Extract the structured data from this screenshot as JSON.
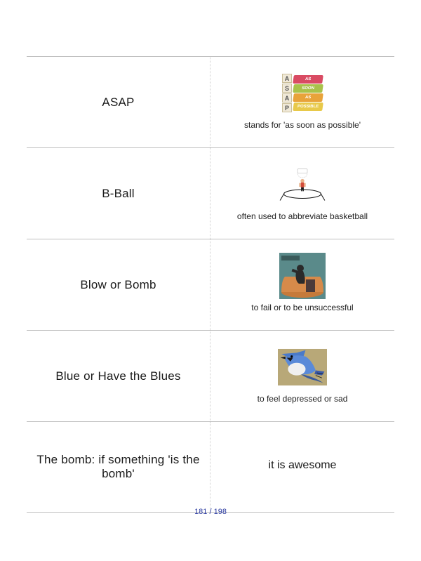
{
  "rows": [
    {
      "term": "ASAP",
      "definition": "stands for 'as soon as possible'",
      "icon": "asap",
      "def_big": false
    },
    {
      "term": "B-Ball",
      "definition": "often used to abbreviate basketball",
      "icon": "bball",
      "def_big": false
    },
    {
      "term": "Blow or Bomb",
      "definition": "to fail or to be unsuccessful",
      "icon": "bomb",
      "def_big": false
    },
    {
      "term": "Blue or Have the Blues",
      "definition": "to feel depressed or sad",
      "icon": "bluejay",
      "def_big": false
    },
    {
      "term": "The bomb: if something 'is the bomb'",
      "definition": "it is awesome",
      "icon": null,
      "def_big": true
    }
  ],
  "asap_icon": {
    "letters": [
      "A",
      "S",
      "A",
      "P"
    ],
    "bar_labels": [
      "AS",
      "SOON",
      "AS",
      "POSSIBLE"
    ],
    "bar_colors": [
      "#d94b63",
      "#a9c24a",
      "#e8a33a",
      "#e8c94a"
    ]
  },
  "pager": "181 / 198",
  "colors": {
    "border": "#bfbfbf",
    "dotted": "#cfcfcf",
    "text": "#1a1a1a",
    "pager": "#2a3aa0"
  }
}
